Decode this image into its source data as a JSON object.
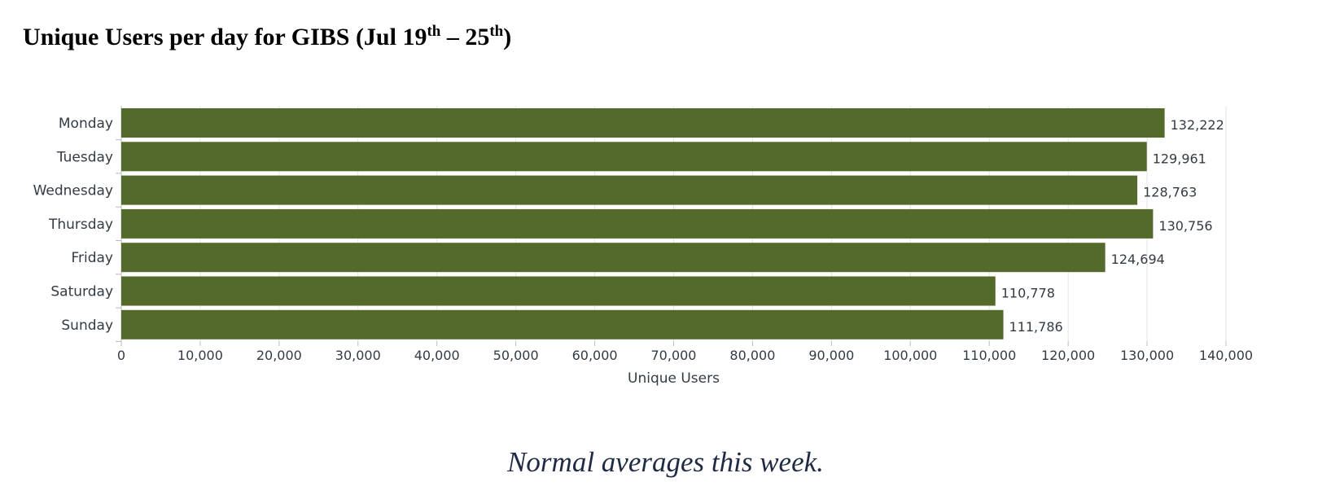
{
  "title": {
    "text": "Unique Users per day for GIBS (Jul 19",
    "sup1": "th",
    "mid": " – 25",
    "sup2": "th",
    "end": ")"
  },
  "caption": "Normal averages this week.",
  "colors": {
    "bar": "#546a2a",
    "grid": "#e4e4e4",
    "axis": "#bdbdbd",
    "text": "#333b44"
  },
  "chart_data": {
    "type": "bar",
    "orientation": "horizontal",
    "title": "Unique Users per day for GIBS (Jul 19th – 25th)",
    "categories": [
      "Monday",
      "Tuesday",
      "Wednesday",
      "Thursday",
      "Friday",
      "Saturday",
      "Sunday"
    ],
    "values": [
      132222,
      129961,
      128763,
      130756,
      124694,
      110778,
      111786
    ],
    "value_labels": [
      "132,222",
      "129,961",
      "128,763",
      "130,756",
      "124,694",
      "110,778",
      "111,786"
    ],
    "xlabel": "Unique Users",
    "ylabel": "",
    "xlim": [
      0,
      140000
    ],
    "ticks": [
      0,
      10000,
      20000,
      30000,
      40000,
      50000,
      60000,
      70000,
      80000,
      90000,
      100000,
      110000,
      120000,
      130000,
      140000
    ],
    "tick_labels": [
      "0",
      "10,000",
      "20,000",
      "30,000",
      "40,000",
      "50,000",
      "60,000",
      "70,000",
      "80,000",
      "90,000",
      "100,000",
      "110,000",
      "120,000",
      "130,000",
      "140,000"
    ],
    "grid": true,
    "legend": false
  }
}
